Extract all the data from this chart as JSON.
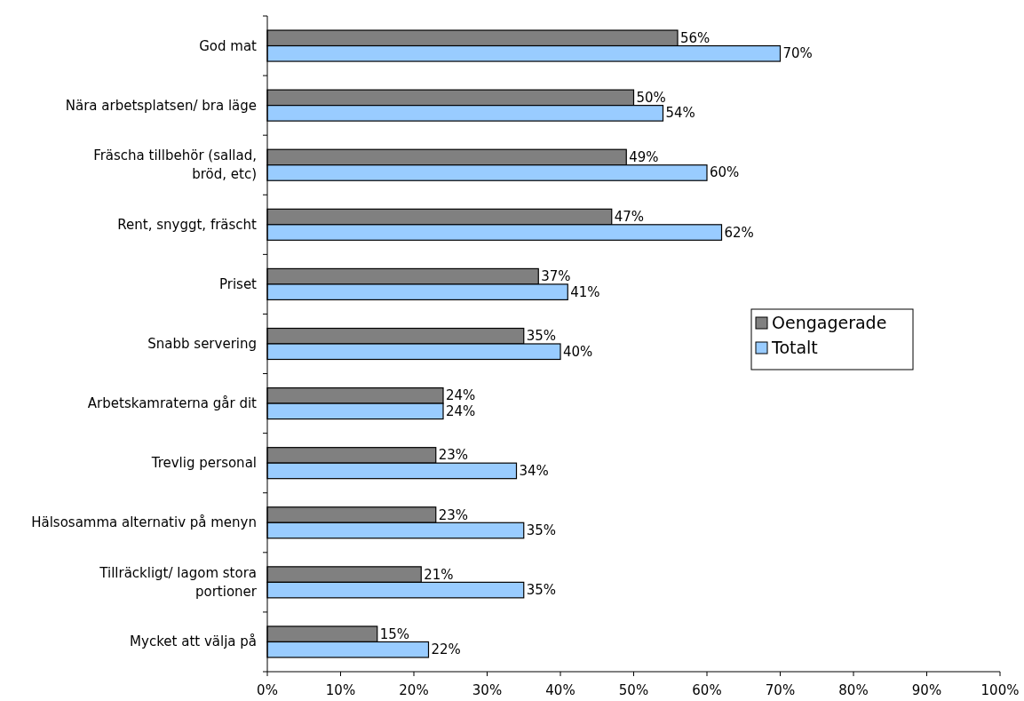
{
  "chart_data": {
    "type": "bar",
    "orientation": "horizontal",
    "categories": [
      "God mat",
      "Nära arbetsplatsen/ bra läge",
      "Fräscha tillbehör (sallad, bröd, etc)",
      "Rent, snyggt, fräscht",
      "Priset",
      "Snabb servering",
      "Arbetskamraterna går dit",
      "Trevlig personal",
      "Hälsosamma alternativ på menyn",
      "Tillräckligt/ lagom stora portioner",
      "Mycket att välja på"
    ],
    "series": [
      {
        "name": "Oengagerade",
        "color": "#808080",
        "values": [
          56,
          50,
          49,
          47,
          37,
          35,
          24,
          23,
          23,
          21,
          15
        ],
        "value_labels": [
          "56%",
          "50%",
          "49%",
          "47%",
          "37%",
          "35%",
          "24%",
          "23%",
          "23%",
          "21%",
          "15%"
        ]
      },
      {
        "name": "Totalt",
        "color": "#99ccff",
        "values": [
          70,
          54,
          60,
          62,
          41,
          40,
          24,
          34,
          35,
          35,
          22
        ],
        "value_labels": [
          "70%",
          "54%",
          "60%",
          "62%",
          "41%",
          "40%",
          "24%",
          "34%",
          "35%",
          "35%",
          "22%"
        ]
      }
    ],
    "xlim": [
      0,
      100
    ],
    "xticks": [
      {
        "value": 0,
        "label": "0%"
      },
      {
        "value": 10,
        "label": "10%"
      },
      {
        "value": 20,
        "label": "20%"
      },
      {
        "value": 30,
        "label": "30%"
      },
      {
        "value": 40,
        "label": "40%"
      },
      {
        "value": 50,
        "label": "50%"
      },
      {
        "value": 60,
        "label": "60%"
      },
      {
        "value": 70,
        "label": "70%"
      },
      {
        "value": 80,
        "label": "80%"
      },
      {
        "value": 90,
        "label": "90%"
      },
      {
        "value": 100,
        "label": "100%"
      }
    ],
    "legend": "right",
    "grid": false
  }
}
